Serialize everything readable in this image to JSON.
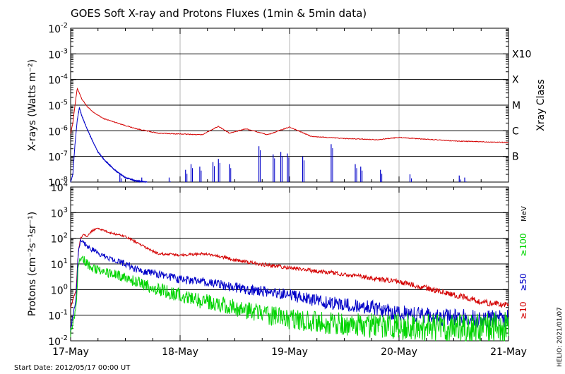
{
  "chart_data": [
    {
      "type": "line",
      "title": "GOES Soft X-ray and Protons Fluxes   (1min & 5min data)",
      "ylabel": "X-rays (Watts m⁻²)",
      "right_label": "Xray Class",
      "yscale": "log",
      "ylim": [
        1e-08,
        0.01
      ],
      "y_ticks": [
        {
          "base": "10",
          "exp": "-2"
        },
        {
          "base": "10",
          "exp": "-3"
        },
        {
          "base": "10",
          "exp": "-4"
        },
        {
          "base": "10",
          "exp": "-5"
        },
        {
          "base": "10",
          "exp": "-6"
        },
        {
          "base": "10",
          "exp": "-7"
        },
        {
          "base": "10",
          "exp": "-8"
        }
      ],
      "class_labels": [
        {
          "label": "X10",
          "value": 0.001
        },
        {
          "label": "X",
          "value": 0.0001
        },
        {
          "label": "M",
          "value": 1e-05
        },
        {
          "label": "C",
          "value": 1e-06
        },
        {
          "label": "B",
          "value": 1e-07
        }
      ],
      "grid": true,
      "series": [
        {
          "color": "#d40000",
          "x": [
            0,
            0.02,
            0.04,
            0.06,
            0.08,
            0.1,
            0.15,
            0.2,
            0.3,
            0.4,
            0.5,
            0.6,
            0.8,
            1.0,
            1.2,
            1.35,
            1.45,
            1.6,
            1.8,
            2.0,
            2.2,
            2.5,
            2.8,
            3.0,
            3.5,
            4.0
          ],
          "values": [
            8e-07,
            2e-06,
            1e-05,
            4.5e-05,
            3e-05,
            1.8e-05,
            9e-06,
            5.5e-06,
            3e-06,
            2.2e-06,
            1.6e-06,
            1.2e-06,
            8e-07,
            7.5e-07,
            7e-07,
            1.5e-06,
            8e-07,
            1.2e-06,
            7e-07,
            1.4e-06,
            6e-07,
            5e-07,
            4.5e-07,
            5.5e-07,
            4e-07,
            3.5e-07
          ]
        },
        {
          "color": "#0000c8",
          "x": [
            0,
            0.02,
            0.04,
            0.06,
            0.08,
            0.1,
            0.15,
            0.2,
            0.25,
            0.3,
            0.4,
            0.5,
            0.6,
            0.7
          ],
          "values": [
            1e-08,
            2e-08,
            3e-07,
            2.5e-06,
            8e-06,
            4e-06,
            1.2e-06,
            4e-07,
            1.5e-07,
            8e-08,
            3e-08,
            1.5e-08,
            1.1e-08,
            1e-08
          ]
        }
      ],
      "bursts": [
        {
          "x": 0.45,
          "value": 2e-08
        },
        {
          "x": 0.65,
          "value": 1.5e-08
        },
        {
          "x": 0.9,
          "value": 1.5e-08
        },
        {
          "x": 1.05,
          "value": 3e-08
        },
        {
          "x": 1.1,
          "value": 5e-08
        },
        {
          "x": 1.18,
          "value": 4e-08
        },
        {
          "x": 1.3,
          "value": 6e-08
        },
        {
          "x": 1.35,
          "value": 8e-08
        },
        {
          "x": 1.45,
          "value": 5e-08
        },
        {
          "x": 1.72,
          "value": 2.5e-07
        },
        {
          "x": 1.85,
          "value": 1.2e-07
        },
        {
          "x": 1.92,
          "value": 1.5e-07
        },
        {
          "x": 1.98,
          "value": 1.3e-07
        },
        {
          "x": 2.12,
          "value": 1e-07
        },
        {
          "x": 2.38,
          "value": 3e-07
        },
        {
          "x": 2.6,
          "value": 5e-08
        },
        {
          "x": 2.65,
          "value": 4e-08
        },
        {
          "x": 2.83,
          "value": 3e-08
        },
        {
          "x": 3.1,
          "value": 2e-08
        },
        {
          "x": 3.55,
          "value": 1.8e-08
        },
        {
          "x": 3.6,
          "value": 1.5e-08
        }
      ]
    },
    {
      "type": "line",
      "ylabel": "Protons (cm⁻²s⁻¹sr⁻¹)",
      "yscale": "log",
      "ylim": [
        0.01,
        10000
      ],
      "y_ticks": [
        {
          "base": "10",
          "exp": "4"
        },
        {
          "base": "10",
          "exp": "3"
        },
        {
          "base": "10",
          "exp": "2"
        },
        {
          "base": "10",
          "exp": "1"
        },
        {
          "base": "10",
          "exp": "0"
        },
        {
          "base": "10",
          "exp": "-1"
        },
        {
          "base": "10",
          "exp": "-2"
        }
      ],
      "threshold": 10,
      "right_unit": "MeV",
      "grid": true,
      "series": [
        {
          "name": "≥10",
          "color": "#d40000",
          "x": [
            0,
            0.05,
            0.07,
            0.09,
            0.12,
            0.15,
            0.2,
            0.25,
            0.3,
            0.35,
            0.4,
            0.5,
            0.6,
            0.7,
            0.8,
            1.0,
            1.2,
            1.4,
            1.6,
            1.8,
            2.0,
            2.2,
            2.5,
            2.8,
            3.0,
            3.2,
            3.4,
            3.6,
            3.8,
            4.0
          ],
          "values": [
            0.2,
            1,
            30,
            100,
            150,
            120,
            200,
            250,
            200,
            170,
            150,
            120,
            70,
            40,
            25,
            22,
            25,
            18,
            12,
            9,
            7,
            5.5,
            4,
            2.5,
            2,
            1.3,
            0.8,
            0.5,
            0.3,
            0.25
          ]
        },
        {
          "name": "≥50",
          "color": "#0000c8",
          "x": [
            0,
            0.05,
            0.07,
            0.09,
            0.12,
            0.15,
            0.2,
            0.3,
            0.4,
            0.5,
            0.6,
            0.7,
            0.8,
            1.0,
            1.2,
            1.4,
            1.6,
            1.8,
            2.0,
            2.2,
            2.5,
            2.8,
            3.0,
            3.3,
            3.6,
            4.0
          ],
          "values": [
            0.03,
            0.5,
            30,
            90,
            70,
            50,
            35,
            20,
            15,
            10,
            6,
            5,
            4,
            2.5,
            2,
            1.5,
            1,
            0.8,
            0.6,
            0.4,
            0.25,
            0.18,
            0.12,
            0.09,
            0.08,
            0.07
          ]
        },
        {
          "name": "≥100",
          "color": "#00d400",
          "x": [
            0,
            0.05,
            0.07,
            0.09,
            0.12,
            0.15,
            0.2,
            0.3,
            0.4,
            0.5,
            0.6,
            0.8,
            1.0,
            1.2,
            1.4,
            1.6,
            1.8,
            2.0,
            2.3,
            2.6,
            3.0,
            3.5,
            4.0
          ],
          "values": [
            0.02,
            0.2,
            10,
            20,
            15,
            10,
            7,
            5,
            4,
            3,
            2,
            1,
            0.6,
            0.35,
            0.25,
            0.15,
            0.1,
            0.07,
            0.05,
            0.04,
            0.035,
            0.03,
            0.03
          ]
        }
      ]
    }
  ],
  "x_axis": {
    "tick_labels": [
      "17-May",
      "18-May",
      "19-May",
      "20-May",
      "21-May"
    ],
    "xlim": [
      0,
      4
    ]
  },
  "footer": {
    "start_date": "Start Date: 2012/05/17 00:00 UT",
    "credit": "HELIO: 2021/01/07"
  }
}
